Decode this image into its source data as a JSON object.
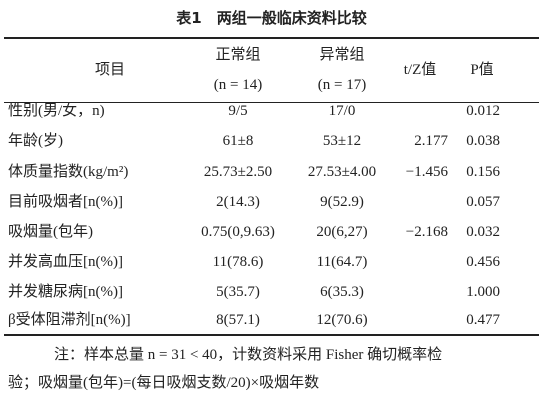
{
  "title": "表1　两组一般临床资料比较",
  "table": {
    "header": [
      "项目",
      "正常组",
      "异常组",
      "t/Z值",
      "P值"
    ],
    "subheader": [
      "(n = 14)",
      "(n = 17)"
    ],
    "rows": [
      [
        "性别(男/女，n)",
        "9/5",
        "17/0",
        null,
        "0.012"
      ],
      [
        "年龄(岁)",
        "61±8",
        "53±12",
        "2.177",
        "0.038"
      ],
      [
        "体质量指数(kg/m²)",
        "25.73±2.50",
        "27.53±4.00",
        "−1.456",
        "0.156"
      ],
      [
        "目前吸烟者[n(%)]",
        "2(14.3)",
        "9(52.9)",
        null,
        "0.057"
      ],
      [
        "吸烟量(包年)",
        "0.75(0,9.63)",
        "20(6,27)",
        "−2.168",
        "0.032"
      ],
      [
        "并发高血压[n(%)]",
        "11(78.6)",
        "11(64.7)",
        null,
        "0.456"
      ],
      [
        "并发糖尿病[n(%)]",
        "5(35.7)",
        "6(35.3)",
        null,
        "1.000"
      ],
      [
        "β受体阻滞剂[n(%)]",
        "8(57.1)",
        "12(70.6)",
        null,
        "0.477"
      ]
    ]
  },
  "note": [
    "注：样本总量 n = 31 < 40，计数资料采用 Fisher 确切概率检",
    "验；吸烟量(包年)=(每日吸烟支数/20)×吸烟年数"
  ]
}
